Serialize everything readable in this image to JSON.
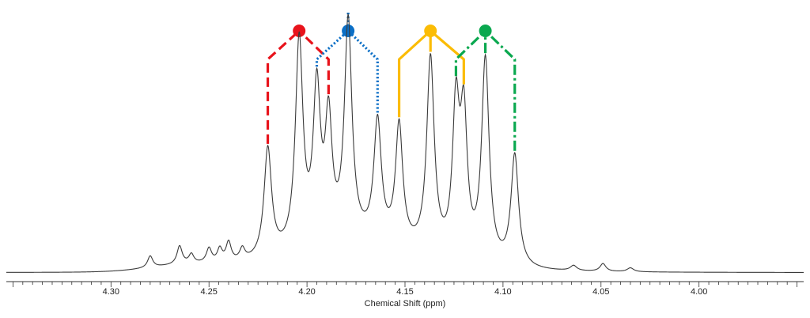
{
  "chart_data": {
    "type": "line",
    "title": "",
    "xlabel": "Chemical Shift (ppm)",
    "ylabel": "",
    "x_reversed": true,
    "xlim": [
      4.3534,
      3.9466
    ],
    "ylim": [
      0,
      1
    ],
    "grid": false,
    "major_ticks": [
      4.3,
      4.25,
      4.2,
      4.15,
      4.1,
      4.05,
      4.0
    ],
    "tick_labels": [
      "4.30",
      "4.25",
      "4.20",
      "4.15",
      "4.10",
      "4.05",
      "4.00"
    ],
    "minor_tick_step": 0.005,
    "baseline": 0.01,
    "spectrum_peaks": [
      {
        "x": 4.28,
        "h": 0.045,
        "w": 0.0016
      },
      {
        "x": 4.265,
        "h": 0.07,
        "w": 0.0016
      },
      {
        "x": 4.259,
        "h": 0.035,
        "w": 0.0015
      },
      {
        "x": 4.25,
        "h": 0.055,
        "w": 0.0016
      },
      {
        "x": 4.2445,
        "h": 0.05,
        "w": 0.0015
      },
      {
        "x": 4.24,
        "h": 0.075,
        "w": 0.0016
      },
      {
        "x": 4.233,
        "h": 0.045,
        "w": 0.0016
      },
      {
        "x": 4.22,
        "h": 0.42,
        "w": 0.0023
      },
      {
        "x": 4.204,
        "h": 0.8,
        "w": 0.0023
      },
      {
        "x": 4.195,
        "h": 0.58,
        "w": 0.0022
      },
      {
        "x": 4.189,
        "h": 0.45,
        "w": 0.0021
      },
      {
        "x": 4.179,
        "h": 0.84,
        "w": 0.0023
      },
      {
        "x": 4.164,
        "h": 0.46,
        "w": 0.0023
      },
      {
        "x": 4.153,
        "h": 0.46,
        "w": 0.0022
      },
      {
        "x": 4.137,
        "h": 0.75,
        "w": 0.0023
      },
      {
        "x": 4.124,
        "h": 0.56,
        "w": 0.0021
      },
      {
        "x": 4.12,
        "h": 0.52,
        "w": 0.0021
      },
      {
        "x": 4.109,
        "h": 0.78,
        "w": 0.0023
      },
      {
        "x": 4.094,
        "h": 0.43,
        "w": 0.0023
      },
      {
        "x": 4.064,
        "h": 0.02,
        "w": 0.002
      },
      {
        "x": 4.049,
        "h": 0.03,
        "w": 0.0018
      },
      {
        "x": 4.035,
        "h": 0.015,
        "w": 0.002
      }
    ],
    "broad_envelope": [
      {
        "x": 4.175,
        "h": 0.1,
        "w": 0.032
      },
      {
        "x": 4.26,
        "h": 0.025,
        "w": 0.02
      }
    ],
    "multiplets": [
      {
        "color": "#e8131b",
        "style": "dashed",
        "center": 4.204,
        "lines": [
          4.22,
          4.204,
          4.189
        ]
      },
      {
        "color": "#0b6fc6",
        "style": "dotted",
        "center": 4.179,
        "lines": [
          4.195,
          4.179,
          4.164
        ]
      },
      {
        "color": "#fbbc05",
        "style": "solid",
        "center": 4.137,
        "lines": [
          4.153,
          4.137,
          4.12
        ]
      },
      {
        "color": "#0aa84f",
        "style": "dashdot",
        "center": 4.109,
        "lines": [
          4.124,
          4.109,
          4.094
        ]
      }
    ],
    "colors": {
      "spectrum": "#3a3a3a",
      "axis": "#333333"
    }
  }
}
